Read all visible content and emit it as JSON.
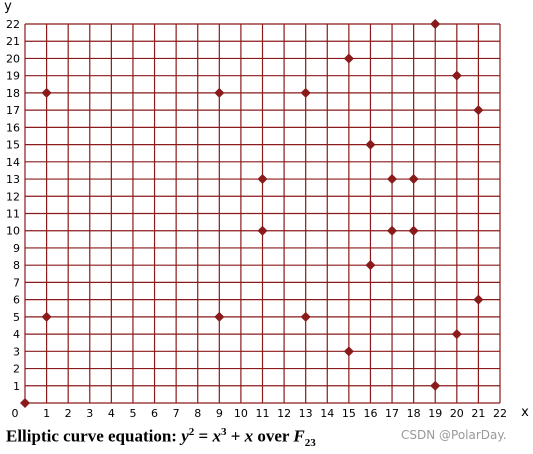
{
  "chart_data": {
    "type": "scatter",
    "xlabel": "x",
    "ylabel": "y",
    "xlim": [
      0,
      22
    ],
    "ylim": [
      0,
      22
    ],
    "grid": true,
    "x_ticks": [
      0,
      1,
      2,
      3,
      4,
      5,
      6,
      7,
      8,
      9,
      10,
      11,
      12,
      13,
      14,
      15,
      16,
      17,
      18,
      19,
      20,
      21,
      22
    ],
    "y_ticks": [
      0,
      1,
      2,
      3,
      4,
      5,
      6,
      7,
      8,
      9,
      10,
      11,
      12,
      13,
      14,
      15,
      16,
      17,
      18,
      19,
      20,
      21,
      22
    ],
    "points": [
      [
        0,
        0
      ],
      [
        1,
        5
      ],
      [
        1,
        18
      ],
      [
        9,
        5
      ],
      [
        9,
        18
      ],
      [
        11,
        10
      ],
      [
        11,
        13
      ],
      [
        13,
        5
      ],
      [
        13,
        18
      ],
      [
        15,
        3
      ],
      [
        15,
        20
      ],
      [
        16,
        8
      ],
      [
        16,
        15
      ],
      [
        17,
        10
      ],
      [
        17,
        13
      ],
      [
        18,
        10
      ],
      [
        18,
        13
      ],
      [
        19,
        1
      ],
      [
        19,
        22
      ],
      [
        20,
        4
      ],
      [
        20,
        19
      ],
      [
        21,
        6
      ],
      [
        21,
        17
      ]
    ],
    "colors": {
      "grid": "#8b1a1a",
      "point": "#8b1a1a",
      "text": "#000000",
      "caption": "#8b1a1a"
    }
  },
  "caption": {
    "prefix": "Elliptic curve equation: ",
    "y": "y",
    "y_exp": "2",
    "eq": " = ",
    "x1": "x",
    "x1_exp": "3",
    "plus": " + ",
    "x2": "x",
    "over": " over ",
    "field": "F",
    "field_sub": "23"
  },
  "watermark": "CSDN @PolarDay."
}
